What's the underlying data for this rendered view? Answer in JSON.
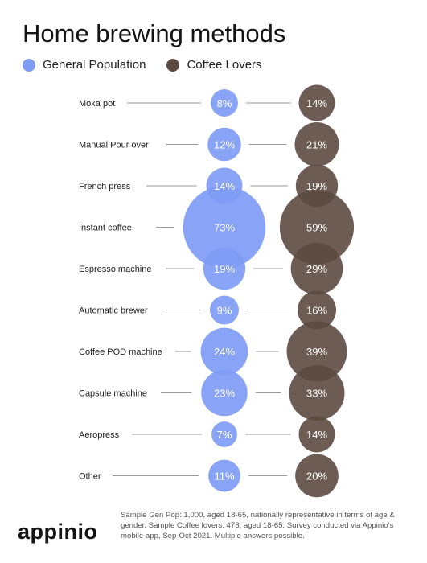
{
  "chart_data": {
    "type": "bubble",
    "title": "Home brewing methods",
    "categories": [
      "Moka pot",
      "Manual Pour over",
      "French press",
      "Instant coffee",
      "Espresso machine",
      "Automatic brewer",
      "Coffee POD machine",
      "Capsule machine",
      "Aeropress",
      "Other"
    ],
    "series": [
      {
        "name": "General Population",
        "color": "#7f9cf5",
        "values": [
          8,
          12,
          14,
          73,
          19,
          9,
          24,
          23,
          7,
          11
        ],
        "labels": [
          "8%",
          "12%",
          "14%",
          "73%",
          "19%",
          "9%",
          "24%",
          "23%",
          "7%",
          "11%"
        ]
      },
      {
        "name": "Coffee Lovers",
        "color": "#5c4a40",
        "values": [
          14,
          21,
          19,
          59,
          29,
          16,
          39,
          33,
          14,
          20
        ],
        "labels": [
          "14%",
          "21%",
          "19%",
          "59%",
          "29%",
          "16%",
          "39%",
          "33%",
          "14%",
          "20%"
        ]
      }
    ],
    "legend_position": "top-left",
    "grid": false
  },
  "brand": "appinio",
  "footnote": "Sample Gen Pop: 1,000, aged 18-65, nationally representative in terms of age & gender. Sample Coffee lovers: 478, aged 18-65. Survey conducted via Appinio's mobile app, Sep-Oct 2021. Multiple answers possible."
}
